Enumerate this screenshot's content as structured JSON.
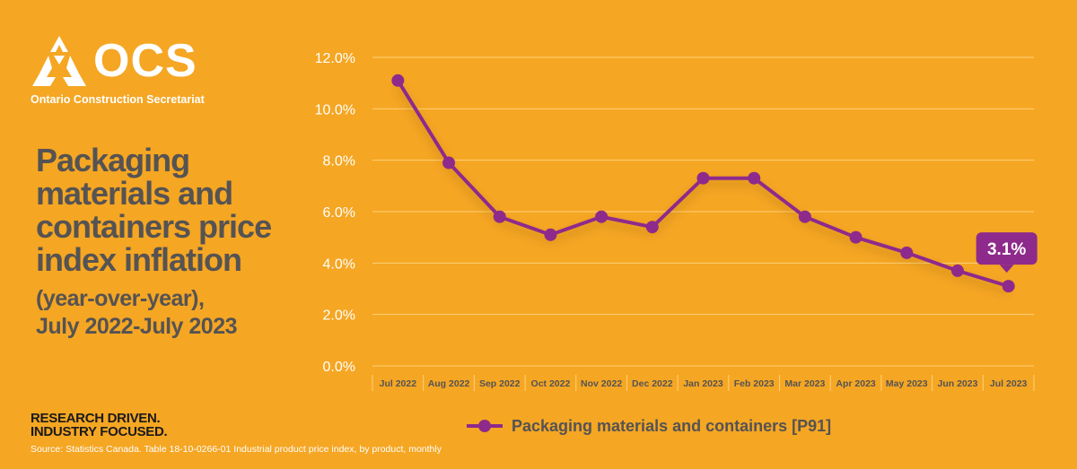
{
  "logo": {
    "name": "OCS",
    "subtitle": "Ontario Construction Secretariat"
  },
  "title": "Packaging materials and containers price index inflation",
  "subtitle_lines": [
    "(year-over-year),",
    "July 2022-July 2023"
  ],
  "tagline_lines": [
    "RESEARCH DRIVEN.",
    "INDUSTRY FOCUSED."
  ],
  "source": "Source: Statistics Canada. Table 18-10-0266-01  Industrial product price index, by product, monthly",
  "colors": {
    "background": "#f5a623",
    "line": "#8e2a8b",
    "gridline": "#ffd27a",
    "text_dark": "#555353",
    "text_light": "#ffffff"
  },
  "chart_data": {
    "type": "line",
    "categories": [
      "Jul 2022",
      "Aug 2022",
      "Sep 2022",
      "Oct 2022",
      "Nov 2022",
      "Dec 2022",
      "Jan 2023",
      "Feb 2023",
      "Mar 2023",
      "Apr 2023",
      "May 2023",
      "Jun 2023",
      "Jul 2023"
    ],
    "series": [
      {
        "name": "Packaging materials and containers [P91]",
        "values": [
          11.1,
          7.9,
          5.8,
          5.1,
          5.8,
          5.4,
          7.3,
          7.3,
          5.8,
          5.0,
          4.4,
          3.7,
          3.1
        ]
      }
    ],
    "y_ticks": [
      "0.0%",
      "2.0%",
      "4.0%",
      "6.0%",
      "8.0%",
      "10.0%",
      "12.0%"
    ],
    "ylim": [
      0,
      12
    ],
    "grid": true,
    "legend_position": "bottom",
    "annotation": {
      "category": "Jul 2023",
      "text": "3.1%"
    }
  }
}
